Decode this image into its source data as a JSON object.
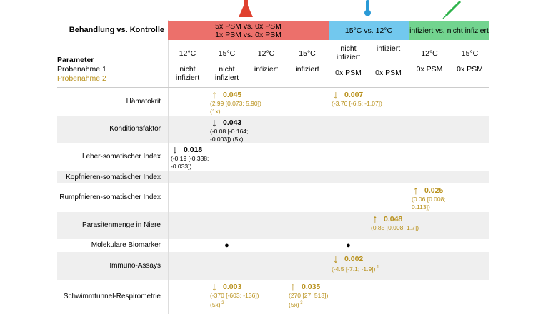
{
  "header": {
    "treatment_label": "Behandlung vs. Kontrolle",
    "groups": [
      {
        "lines": [
          "5x PSM vs. 0x PSM",
          "1x PSM vs. 0x PSM"
        ],
        "color": "#ec706b"
      },
      {
        "lines": [
          "15°C vs. 12°C"
        ],
        "color": "#72c8ee"
      },
      {
        "lines": [
          "infiziert vs. nicht infiziert"
        ],
        "color": "#72d48f"
      }
    ],
    "parameter": "Parameter",
    "sample1": "Probenahme 1",
    "sample2": "Probenahme 2",
    "columns": [
      {
        "line1": "12°C",
        "line2": "nicht infiziert"
      },
      {
        "line1": "15°C",
        "line2": "nicht infiziert"
      },
      {
        "line1": "12°C",
        "line2": "infiziert"
      },
      {
        "line1": "15°C",
        "line2": "infiziert"
      },
      {
        "line1": "nicht infiziert",
        "line2": "0x PSM"
      },
      {
        "line1": "infiziert",
        "line2": "0x PSM"
      },
      {
        "line1": "12°C",
        "line2": "0x PSM"
      },
      {
        "line1": "15°C",
        "line2": "0x PSM"
      }
    ]
  },
  "table": {
    "rows": [
      {
        "label": "Hämatokrit",
        "cells": [
          null,
          {
            "arrow": "↑",
            "value": "0.045",
            "detail": "(2.99 [0.073; 5.90]) (1x)",
            "color": "#b8901a"
          },
          null,
          null,
          {
            "arrow": "↓",
            "value": "0.007",
            "detail": "(-3.76 [-6.5; -1.07])",
            "color": "#b8901a"
          },
          null,
          null,
          null
        ]
      },
      {
        "label": "Konditionsfaktor",
        "cells": [
          null,
          {
            "arrow": "↓",
            "value": "0.043",
            "detail": "(-0.08 [-0.164; -0.003]) (5x)",
            "color": "#000000"
          },
          null,
          null,
          null,
          null,
          null,
          null
        ]
      },
      {
        "label": "Leber-somatischer Index",
        "cells": [
          {
            "arrow": "↓",
            "value": "0.018",
            "detail": "(-0.19 [-0.338; -0.033])",
            "color": "#000000"
          },
          null,
          null,
          null,
          null,
          null,
          null,
          null
        ]
      },
      {
        "label": "Kopfnieren-somatischer Index",
        "cells": [
          null,
          null,
          null,
          null,
          null,
          null,
          null,
          null
        ]
      },
      {
        "label": "Rumpfnieren-somatischer Index",
        "cells": [
          null,
          null,
          null,
          null,
          null,
          null,
          {
            "arrow": "↑",
            "value": "0.025",
            "detail": "(0.06 [0.008; 0.113])",
            "color": "#b8901a"
          },
          null
        ]
      },
      {
        "label": "Parasitenmenge in Niere",
        "cells": [
          null,
          null,
          null,
          null,
          null,
          {
            "arrow": "↑",
            "value": "0.048",
            "detail": "(0.85 [0.008; 1.7])",
            "color": "#b8901a"
          },
          null,
          null
        ]
      },
      {
        "label": "Molekulare Biomarker",
        "cells": [
          null,
          {
            "dot": "●"
          },
          null,
          null,
          {
            "dot": "●"
          },
          null,
          null,
          null
        ]
      },
      {
        "label": "Immuno-Assays",
        "cells": [
          null,
          null,
          null,
          null,
          {
            "arrow": "↓",
            "value": "0.002",
            "detail": "(-4.5 [-7.1; -1.9])",
            "note": "1",
            "color": "#b8901a"
          },
          null,
          null,
          null
        ]
      },
      {
        "label": "Schwimmtunnel-Respirometrie",
        "cells": [
          null,
          {
            "arrow": "↓",
            "value": "0.003",
            "detail": "(-370 [-603; -136]) (5x)",
            "note": "2",
            "color": "#b8901a"
          },
          null,
          {
            "arrow": "↑",
            "value": "0.035",
            "detail": "(270 [27; 513]) (5x)",
            "note": "3",
            "color": "#b8901a"
          },
          null,
          null,
          null,
          null
        ]
      }
    ]
  }
}
